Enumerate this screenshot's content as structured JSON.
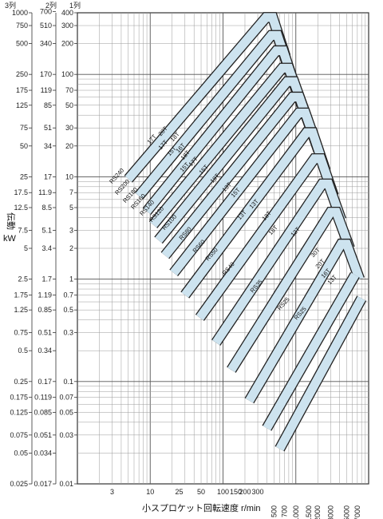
{
  "chart_data": {
    "type": "line",
    "x_scale": "log",
    "y_scale": "log",
    "xlim": [
      1,
      10000
    ],
    "ylim": [
      0.01,
      400
    ],
    "grid": true,
    "xlabel": "小スプロケット回転速度 r/min",
    "ylabel_main": "伝動",
    "ylabel_unit": "kW",
    "column_headers": [
      "3列",
      "2列",
      "1列"
    ],
    "y_ticks_1row": [
      "0.01",
      "0.03",
      "0.05",
      "0.07",
      "0.1",
      "0.3",
      "0.5",
      "0.7",
      "1",
      "2",
      "3",
      "5",
      "7",
      "10",
      "20",
      "30",
      "50",
      "70",
      "100",
      "200",
      "300",
      "400"
    ],
    "y_ticks_2row": [
      "0.017",
      "0.034",
      "0.051",
      "0.085",
      "0.119",
      "0.17",
      "0.34",
      "0.51",
      "0.85",
      "1.19",
      "1.7",
      "3.4",
      "5.1",
      "8.5",
      "11.9",
      "17",
      "34",
      "51",
      "85",
      "119",
      "170",
      "340",
      "510",
      "700"
    ],
    "y_ticks_3row": [
      "0.025",
      "0.05",
      "0.075",
      "0.125",
      "0.175",
      "0.25",
      "0.5",
      "0.75",
      "1.25",
      "1.75",
      "2.5",
      "5",
      "7.5",
      "12.5",
      "17.5",
      "25",
      "50",
      "75",
      "125",
      "175",
      "250",
      "500",
      "750",
      "1000"
    ],
    "x_ticks": [
      "3",
      "10",
      "25",
      "50",
      "100",
      "150",
      "200",
      "300",
      "500",
      "700",
      "1000",
      "1500",
      "2000",
      "3000",
      "5000",
      "7000"
    ],
    "legend": [],
    "series": [
      {
        "name": "RS240",
        "label": "17T",
        "values": [
          [
            5,
            9.5
          ],
          [
            390,
            360
          ],
          [
            480,
            360
          ],
          [
            720,
            150
          ]
        ]
      },
      {
        "name": "RS200",
        "label": "20T",
        "values": [
          [
            7,
            6.5
          ],
          [
            460,
            240
          ],
          [
            560,
            240
          ],
          [
            850,
            100
          ]
        ]
      },
      {
        "name": "RS180",
        "label": "17T",
        "values": [
          [
            9,
            4.6
          ],
          [
            540,
            170
          ],
          [
            670,
            170
          ],
          [
            1000,
            72
          ]
        ]
      },
      {
        "name": "RS160",
        "label": "18T",
        "values": [
          [
            11,
            3.4
          ],
          [
            650,
            115
          ],
          [
            800,
            115
          ],
          [
            1200,
            50
          ]
        ]
      },
      {
        "name": "RS140",
        "label": "15T",
        "values": [
          [
            13,
            2.4
          ],
          [
            760,
            85
          ],
          [
            940,
            85
          ],
          [
            1450,
            36
          ]
        ]
      },
      {
        "name": "RS120",
        "label": "16T",
        "values": [
          [
            16,
            1.7
          ],
          [
            900,
            60
          ],
          [
            1120,
            60
          ],
          [
            1700,
            26
          ]
        ]
      },
      {
        "name": "RS100",
        "label": "17T",
        "values": [
          [
            21,
            1.15
          ],
          [
            1100,
            42
          ],
          [
            1350,
            42
          ],
          [
            2050,
            18
          ]
        ]
      },
      {
        "name": "RS80",
        "label": "15T",
        "values": [
          [
            30,
            0.7
          ],
          [
            1400,
            27
          ],
          [
            1700,
            27
          ],
          [
            2550,
            11.5
          ]
        ]
      },
      {
        "name": "RS60",
        "label": "13T",
        "values": [
          [
            48,
            0.42
          ],
          [
            1800,
            15
          ],
          [
            2200,
            15
          ],
          [
            3300,
            6.5
          ]
        ]
      },
      {
        "name": "RS50",
        "label": "13T",
        "values": [
          [
            80,
            0.24
          ],
          [
            2300,
            8.5
          ],
          [
            2800,
            8.5
          ],
          [
            4200,
            3.8
          ]
        ]
      },
      {
        "name": "RS40",
        "label": "18T",
        "values": [
          [
            130,
            0.13
          ],
          [
            3000,
            4.5
          ],
          [
            3600,
            4.5
          ],
          [
            5500,
            2
          ]
        ]
      },
      {
        "name": "RS35",
        "label": "13T",
        "values": [
          [
            230,
            0.065
          ],
          [
            4200,
            2.2
          ],
          [
            5000,
            2.2
          ],
          [
            7500,
            1
          ]
        ]
      },
      {
        "name": "RS25",
        "label": "30T",
        "values": [
          [
            400,
            0.035
          ],
          [
            6500,
            1.1
          ]
        ]
      },
      {
        "name": "RS25",
        "label": "20T",
        "values": [
          [
            600,
            0.022
          ],
          [
            8000,
            0.65
          ]
        ]
      }
    ],
    "band_labels": [
      "RS240",
      "17T",
      "20T",
      "RS200",
      "17T",
      "RS180",
      "18T",
      "RS160",
      "15T",
      "16T",
      "RS140",
      "18T",
      "RS120",
      "15T",
      "17T",
      "RS100",
      "15T",
      "RS80",
      "18T",
      "13T",
      "RS60",
      "15T",
      "RS50",
      "13T",
      "13T",
      "RS40",
      "18T",
      "18T",
      "13T",
      "RS35",
      "30T",
      "20T",
      "RS25",
      "16T",
      "RS25",
      "13T"
    ]
  }
}
